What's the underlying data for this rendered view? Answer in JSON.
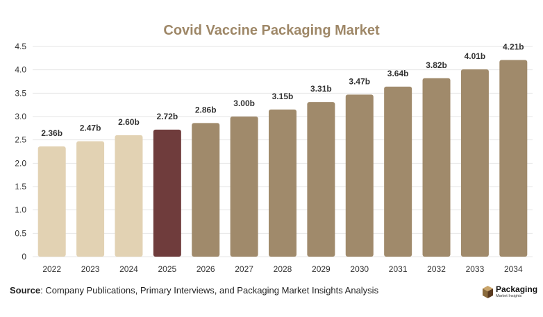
{
  "chart_data": {
    "type": "bar",
    "title": "Covid Vaccine Packaging Market",
    "categories": [
      "2022",
      "2023",
      "2024",
      "2025",
      "2026",
      "2027",
      "2028",
      "2029",
      "2030",
      "2031",
      "2032",
      "2033",
      "2034"
    ],
    "values": [
      2.36,
      2.47,
      2.6,
      2.72,
      2.86,
      3.0,
      3.15,
      3.31,
      3.47,
      3.64,
      3.82,
      4.01,
      4.21
    ],
    "data_labels": [
      "2.36b",
      "2.47b",
      "2.60b",
      "2.72b",
      "2.86b",
      "3.00b",
      "3.15b",
      "3.31b",
      "3.47b",
      "3.64b",
      "3.82b",
      "4.01b",
      "4.21b"
    ],
    "yticks": [
      "0",
      "0.5",
      "1.0",
      "1.5",
      "2.0",
      "2.5",
      "3.0",
      "3.5",
      "4.0",
      "4.5"
    ],
    "ylim": [
      0,
      4.5
    ],
    "xlabel": "",
    "ylabel": "",
    "grid": true,
    "bar_colors": {
      "historical": "#e2d2b3",
      "current": "#6f3c3c",
      "forecast": "#a08a6b"
    },
    "bar_periods": [
      "historical",
      "historical",
      "historical",
      "current",
      "forecast",
      "forecast",
      "forecast",
      "forecast",
      "forecast",
      "forecast",
      "forecast",
      "forecast",
      "forecast"
    ]
  },
  "source": {
    "label": "Source",
    "text": ": Company Publications, Primary Interviews, and Packaging Market Insights Analysis"
  },
  "logo": {
    "name": "Packaging",
    "subtitle": "Market Insights"
  }
}
